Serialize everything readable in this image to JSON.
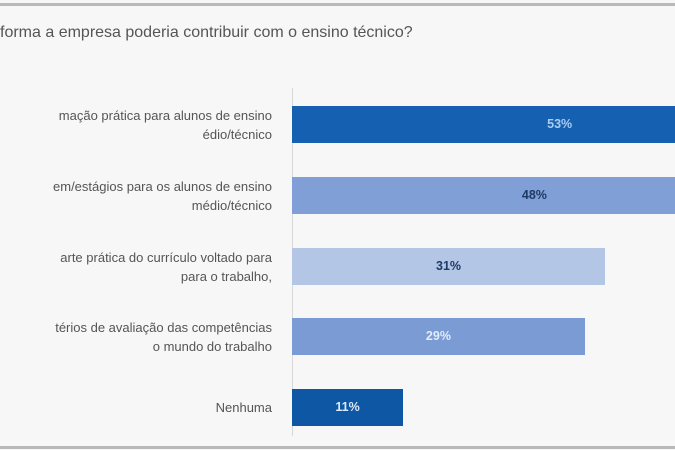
{
  "chart_data": {
    "type": "bar",
    "orientation": "horizontal",
    "title": "forma a empresa poderia contribuir com o ensino técnico?",
    "categories": [
      [
        "mação prática para alunos de ensino",
        "édio/técnico"
      ],
      [
        "em/estágios para os alunos de ensino",
        "médio/técnico"
      ],
      [
        "arte prática do currículo voltado para",
        "para o trabalho,"
      ],
      [
        "térios de avaliação das competências",
        "o mundo do trabalho"
      ],
      [
        "Nenhuma"
      ]
    ],
    "values": [
      53,
      48,
      31,
      29,
      11
    ],
    "value_labels": [
      "53%",
      "48%",
      "31%",
      "29%",
      "11%"
    ],
    "unit": "%",
    "bar_colors": [
      "#1560b0",
      "#7f9fd6",
      "#b3c6e6",
      "#7b9bd4",
      "#0e57a5"
    ],
    "label_colors": [
      "#a8cff2",
      "#1f3a66",
      "#1f3a66",
      "#e3ecf8",
      "#dce9f8"
    ],
    "grid": false,
    "legend": "none"
  }
}
